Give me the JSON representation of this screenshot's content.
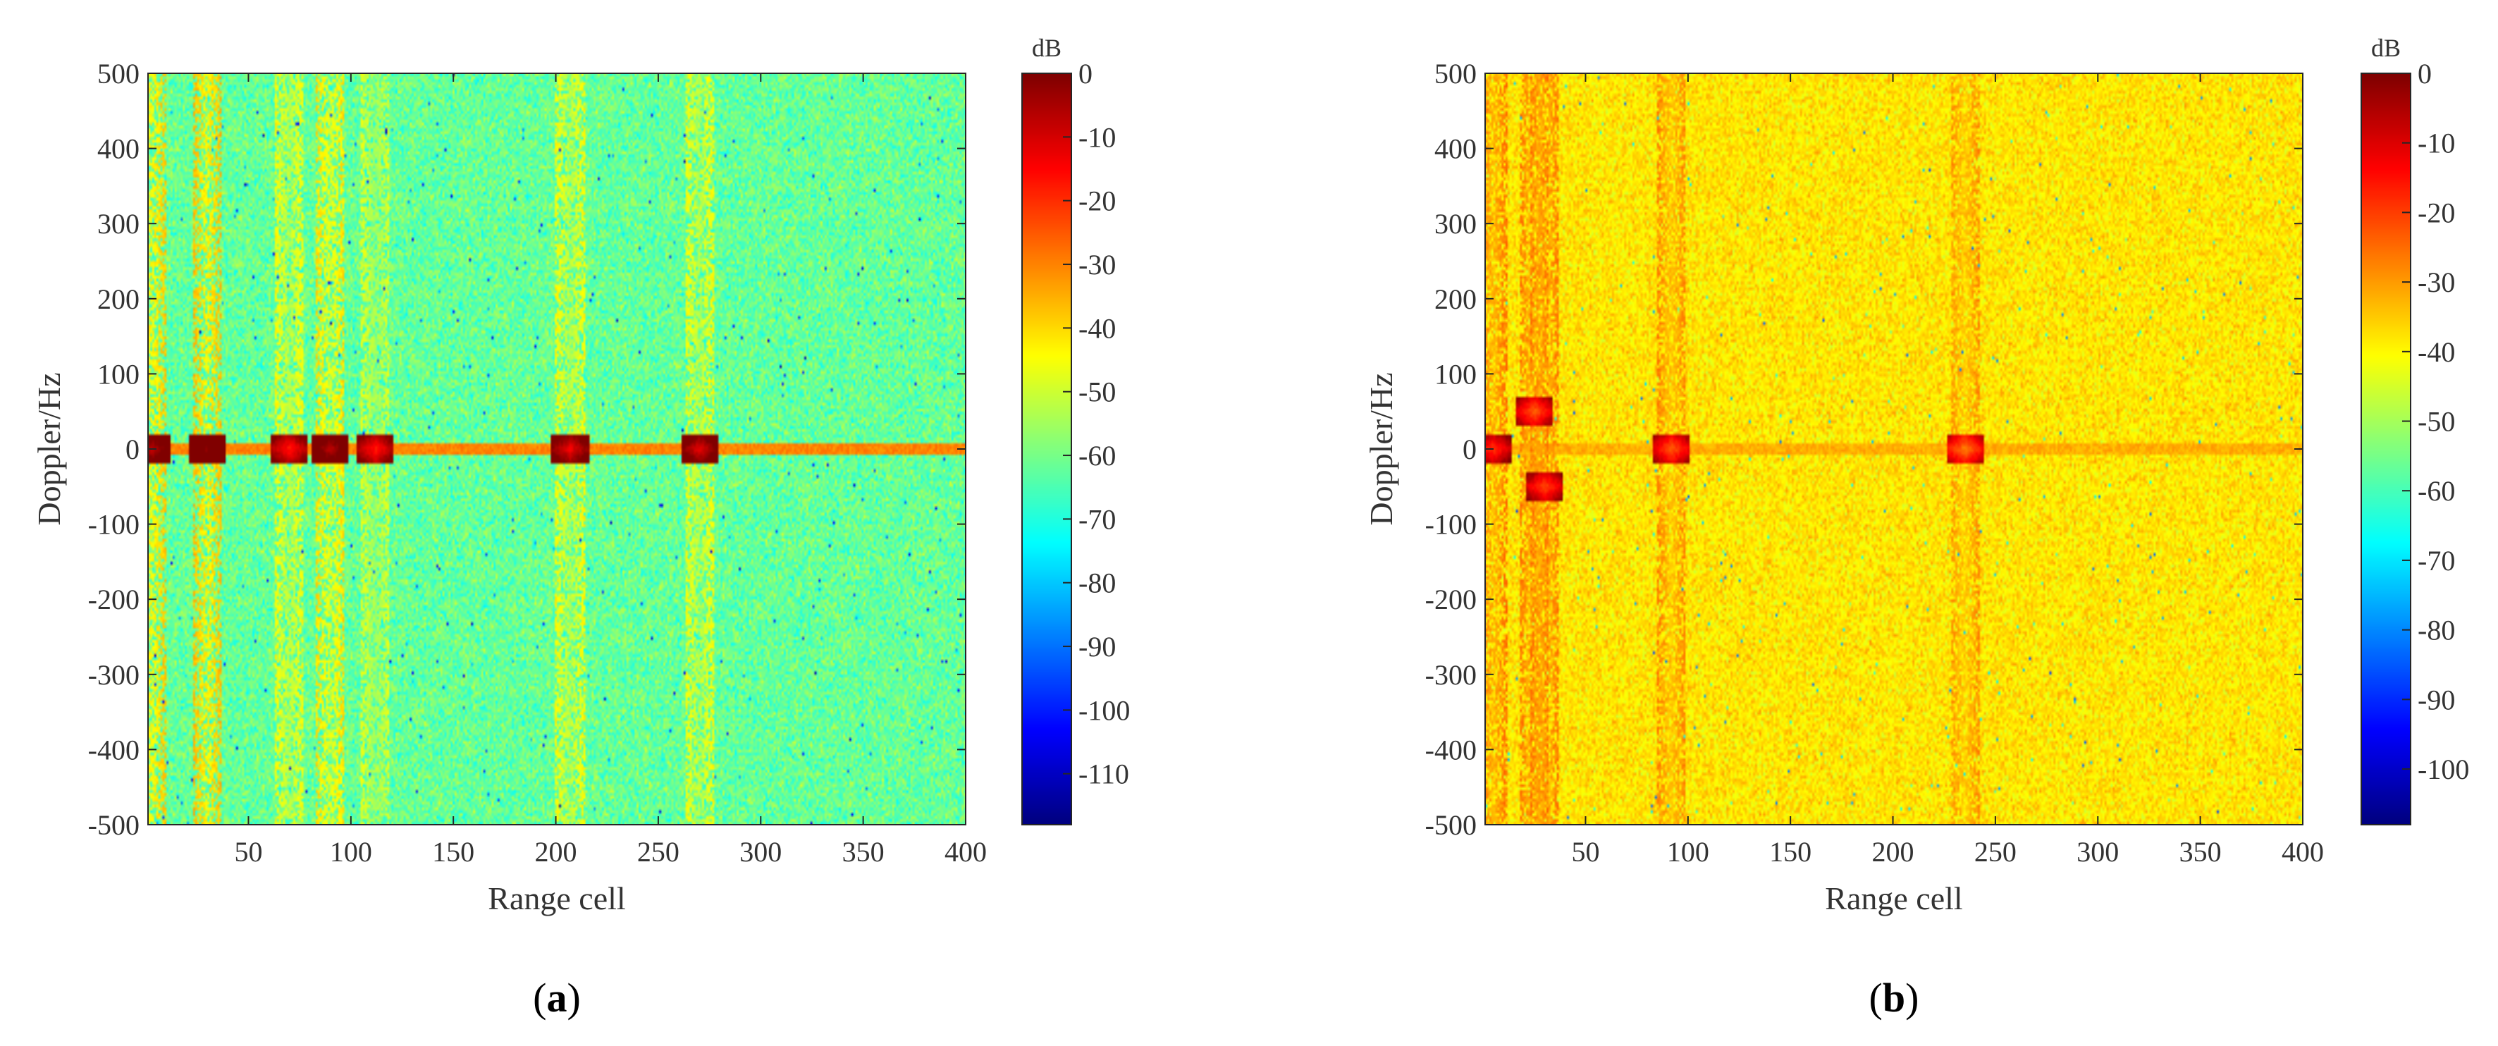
{
  "chart_data": [
    {
      "type": "heatmap",
      "panel_label": "a",
      "xlabel": "Range cell",
      "ylabel": "Doppler/Hz",
      "xlim": [
        1,
        400
      ],
      "ylim": [
        -500,
        500
      ],
      "xticks": [
        50,
        100,
        150,
        200,
        250,
        300,
        350,
        400
      ],
      "yticks": [
        500,
        400,
        300,
        200,
        100,
        0,
        -100,
        -200,
        -300,
        -400,
        -500
      ],
      "colorbar": {
        "unit": "dB",
        "range": [
          -118,
          0
        ],
        "ticks": [
          0,
          -10,
          -20,
          -30,
          -40,
          -50,
          -60,
          -70,
          -80,
          -90,
          -100,
          -110
        ],
        "colormap": "jet"
      },
      "background_level_db": -62,
      "noise_spread_db": 6,
      "clutter_ridge": {
        "doppler_hz": 0,
        "level_db": -30
      },
      "strong_returns": [
        {
          "range_cell": 3,
          "doppler_hz": 0,
          "level_db": -8,
          "vertical_streak_db": -45
        },
        {
          "range_cell": 30,
          "doppler_hz": 0,
          "level_db": -3,
          "vertical_streak_db": -44
        },
        {
          "range_cell": 70,
          "doppler_hz": 0,
          "level_db": -18,
          "vertical_streak_db": -52
        },
        {
          "range_cell": 90,
          "doppler_hz": 0,
          "level_db": -8,
          "vertical_streak_db": -48
        },
        {
          "range_cell": 112,
          "doppler_hz": 0,
          "level_db": -18,
          "vertical_streak_db": -55
        },
        {
          "range_cell": 207,
          "doppler_hz": 0,
          "level_db": -14,
          "vertical_streak_db": -52
        },
        {
          "range_cell": 270,
          "doppler_hz": 0,
          "level_db": -12,
          "vertical_streak_db": -52
        }
      ]
    },
    {
      "type": "heatmap",
      "panel_label": "b",
      "xlabel": "Range cell",
      "ylabel": "Doppler/Hz",
      "xlim": [
        1,
        400
      ],
      "ylim": [
        -500,
        500
      ],
      "xticks": [
        50,
        100,
        150,
        200,
        250,
        300,
        350,
        400
      ],
      "yticks": [
        500,
        400,
        300,
        200,
        100,
        0,
        -100,
        -200,
        -300,
        -400,
        -500
      ],
      "colorbar": {
        "unit": "dB",
        "range": [
          -108,
          0
        ],
        "ticks": [
          0,
          -10,
          -20,
          -30,
          -40,
          -50,
          -60,
          -70,
          -80,
          -90,
          -100
        ],
        "colormap": "jet"
      },
      "background_level_db": -38,
      "noise_spread_db": 4,
      "clutter_ridge": {
        "doppler_hz": 0,
        "level_db": -32
      },
      "strong_returns": [
        {
          "range_cell": 5,
          "doppler_hz": 0,
          "level_db": -20,
          "vertical_streak_db": -33
        },
        {
          "range_cell": 30,
          "doppler_hz": -50,
          "level_db": -22,
          "vertical_streak_db": -34
        },
        {
          "range_cell": 25,
          "doppler_hz": 50,
          "level_db": -24,
          "vertical_streak_db": -34
        },
        {
          "range_cell": 92,
          "doppler_hz": 0,
          "level_db": -24,
          "vertical_streak_db": -35
        },
        {
          "range_cell": 235,
          "doppler_hz": 0,
          "level_db": -27,
          "vertical_streak_db": -36
        }
      ]
    }
  ]
}
